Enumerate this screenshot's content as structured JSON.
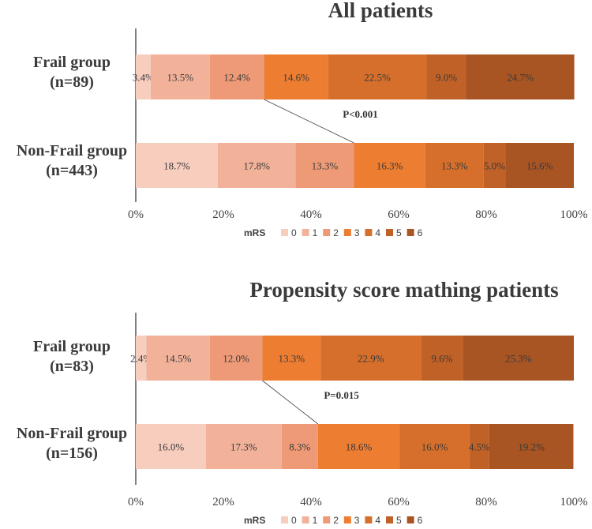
{
  "chart_data": [
    {
      "type": "bar",
      "orientation": "horizontal-stacked-100",
      "title": "All patients",
      "xlim": [
        0,
        100
      ],
      "x_ticks": [
        "0%",
        "20%",
        "40%",
        "60%",
        "80%",
        "100%"
      ],
      "legend_title": "mRS",
      "categories": [
        "Frail group\n(n=89)",
        "Non-Frail group\n(n=443)"
      ],
      "series": [
        {
          "name": "0",
          "values": [
            3.4,
            18.7
          ],
          "labels": [
            "3.4%",
            "18.7%"
          ]
        },
        {
          "name": "1",
          "values": [
            13.5,
            17.8
          ],
          "labels": [
            "13.5%",
            "17.8%"
          ]
        },
        {
          "name": "2",
          "values": [
            12.4,
            13.3
          ],
          "labels": [
            "12.4%",
            "13.3%"
          ]
        },
        {
          "name": "3",
          "values": [
            14.6,
            16.3
          ],
          "labels": [
            "14.6%",
            "16.3%"
          ]
        },
        {
          "name": "4",
          "values": [
            22.5,
            13.3
          ],
          "labels": [
            "22.5%",
            "13.3%"
          ]
        },
        {
          "name": "5",
          "values": [
            9.0,
            5.0
          ],
          "labels": [
            "9.0%",
            "5.0%"
          ]
        },
        {
          "name": "6",
          "values": [
            24.7,
            15.6
          ],
          "labels": [
            "24.7%",
            "15.6%"
          ]
        }
      ],
      "annotation": {
        "text": "P<0.001",
        "connect_after_series": 2
      }
    },
    {
      "type": "bar",
      "orientation": "horizontal-stacked-100",
      "title": "Propensity score mathing patients",
      "xlim": [
        0,
        100
      ],
      "x_ticks": [
        "0%",
        "20%",
        "40%",
        "60%",
        "80%",
        "100%"
      ],
      "legend_title": "mRS",
      "categories": [
        "Frail group\n(n=83)",
        "Non-Frail group\n(n=156)"
      ],
      "series": [
        {
          "name": "0",
          "values": [
            2.4,
            16.0
          ],
          "labels": [
            "2.4%",
            "16.0%"
          ]
        },
        {
          "name": "1",
          "values": [
            14.5,
            17.3
          ],
          "labels": [
            "14.5%",
            "17.3%"
          ]
        },
        {
          "name": "2",
          "values": [
            12.0,
            8.3
          ],
          "labels": [
            "12.0%",
            "8.3%"
          ]
        },
        {
          "name": "3",
          "values": [
            13.3,
            18.6
          ],
          "labels": [
            "13.3%",
            "18.6%"
          ]
        },
        {
          "name": "4",
          "values": [
            22.9,
            16.0
          ],
          "labels": [
            "22.9%",
            "16.0%"
          ]
        },
        {
          "name": "5",
          "values": [
            9.6,
            4.5
          ],
          "labels": [
            "9.6%",
            "4.5%"
          ]
        },
        {
          "name": "6",
          "values": [
            25.3,
            19.2
          ],
          "labels": [
            "25.3%",
            "19.2%"
          ]
        }
      ],
      "annotation": {
        "text": "P=0.015",
        "connect_after_series": 2
      }
    }
  ],
  "colors": [
    "#f7cdbe",
    "#f2b299",
    "#ef9a77",
    "#ed7d31",
    "#d66f2b",
    "#c06127",
    "#a85423"
  ]
}
